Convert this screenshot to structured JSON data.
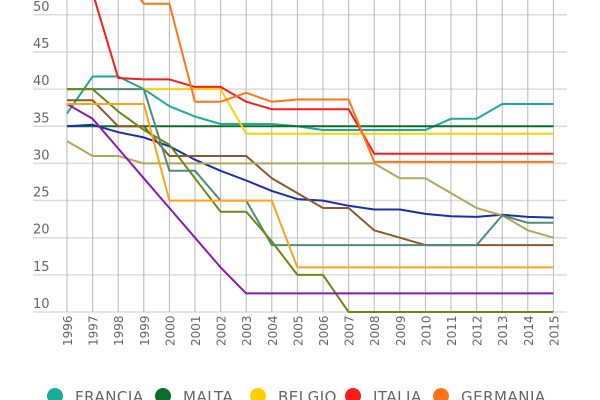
{
  "chart_data": {
    "type": "line",
    "title": "",
    "xlabel": "",
    "ylabel": "",
    "x": [
      1996,
      1997,
      1998,
      1999,
      2000,
      2001,
      2002,
      2003,
      2004,
      2005,
      2006,
      2007,
      2008,
      2009,
      2010,
      2011,
      2012,
      2013,
      2014,
      2015
    ],
    "ylim": [
      10,
      50
    ],
    "yticks": [
      10,
      15,
      20,
      25,
      30,
      35,
      40,
      45,
      50
    ],
    "grid": true,
    "legend_position": "bottom",
    "series": [
      {
        "name": "FRANCIA",
        "color": "#1aab99",
        "values": [
          36.7,
          41.7,
          41.7,
          40,
          37.7,
          36.3,
          35.3,
          35.3,
          35.3,
          35,
          34.5,
          34.5,
          34.5,
          34.5,
          34.5,
          36,
          36,
          38,
          38,
          38
        ]
      },
      {
        "name": "MALTA",
        "color": "#0b6e2a",
        "values": [
          35,
          35,
          35,
          35,
          35,
          35,
          35,
          35,
          35,
          35,
          35,
          35,
          35,
          35,
          35,
          35,
          35,
          35,
          35,
          35
        ]
      },
      {
        "name": "BELGIO",
        "color": "#ffd000",
        "values": [
          40,
          40,
          40,
          40,
          40,
          40,
          40,
          34,
          34,
          34,
          34,
          34,
          34,
          34,
          34,
          34,
          34,
          34,
          34,
          34
        ]
      },
      {
        "name": "ITALIA",
        "color": "#ff1a1a",
        "values": [
          null,
          53,
          41.5,
          41.3,
          41.3,
          40.3,
          40.3,
          38.3,
          37.3,
          37.3,
          37.3,
          37.3,
          31.3,
          31.3,
          31.3,
          31.3,
          31.3,
          31.3,
          31.3,
          31.3
        ]
      },
      {
        "name": "GERMANIA",
        "color": "#ff7518",
        "values": [
          null,
          null,
          56,
          51.5,
          51.5,
          38.3,
          38.3,
          39.5,
          38.3,
          38.6,
          38.6,
          38.6,
          30.2,
          30.2,
          30.2,
          30.2,
          30.2,
          30.2,
          30.2,
          30.2
        ]
      },
      {
        "color": "#1a2fb0",
        "values": [
          35,
          35.2,
          34.2,
          33.5,
          32.3,
          30.5,
          29,
          27.7,
          26.3,
          25.2,
          25,
          24.3,
          23.8,
          23.8,
          23.2,
          22.9,
          22.8,
          23.1,
          22.8,
          22.7
        ]
      },
      {
        "color": "#8b5a2b",
        "values": [
          38.5,
          38.5,
          35,
          35,
          31,
          31,
          31,
          31,
          28,
          26,
          24,
          24,
          21,
          20,
          19,
          19,
          19,
          19,
          19,
          19
        ]
      },
      {
        "color": "#b5a75a",
        "values": [
          33,
          31,
          31,
          30,
          30,
          30,
          30,
          30,
          30,
          30,
          30,
          30,
          30,
          28,
          28,
          26,
          24,
          23,
          21,
          20
        ]
      },
      {
        "color": "#4d8c7c",
        "values": [
          40,
          40,
          40,
          40,
          29,
          29,
          25,
          25,
          19,
          19,
          19,
          19,
          19,
          19,
          19,
          19,
          19,
          23,
          22,
          22
        ]
      },
      {
        "color": "#6b8a12",
        "values": [
          40,
          40,
          37,
          34.5,
          32.5,
          28,
          23.5,
          23.5,
          19.5,
          15,
          15,
          10,
          10,
          10,
          10,
          10,
          10,
          10,
          10,
          10
        ]
      },
      {
        "color": "#8e17b8",
        "values": [
          38,
          36,
          32,
          28,
          24,
          20,
          16,
          12.5,
          12.5,
          12.5,
          12.5,
          12.5,
          12.5,
          12.5,
          12.5,
          12.5,
          12.5,
          12.5,
          12.5,
          12.5
        ]
      },
      {
        "color": "#ffa31a",
        "values": [
          38,
          38,
          38,
          38,
          25,
          25,
          25,
          25,
          25,
          16,
          16,
          16,
          16,
          16,
          16,
          16,
          16,
          16,
          16,
          16
        ]
      }
    ]
  }
}
